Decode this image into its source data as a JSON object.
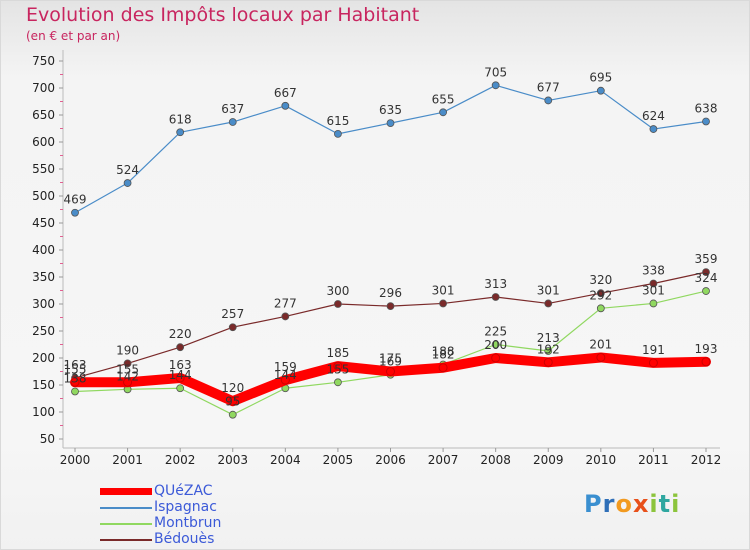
{
  "chart_data": {
    "type": "line",
    "title": "Evolution des Impôts locaux par Habitant",
    "subtitle": "(en € et par an)",
    "x": [
      "2000",
      "2001",
      "2002",
      "2003",
      "2004",
      "2005",
      "2006",
      "2007",
      "2008",
      "2009",
      "2010",
      "2011",
      "2012"
    ],
    "ylim": [
      50,
      750
    ],
    "yticks": [
      50,
      100,
      150,
      200,
      250,
      300,
      350,
      400,
      450,
      500,
      550,
      600,
      650,
      700,
      750
    ],
    "grid": false,
    "legend_position": "bottom-left",
    "series": [
      {
        "name": "QUéZAC",
        "color": "#ff0000",
        "values": [
          155,
          155,
          163,
          120,
          159,
          185,
          175,
          182,
          200,
          192,
          201,
          191,
          193
        ]
      },
      {
        "name": "Ispagnac",
        "color": "#4a8cc8",
        "values": [
          469,
          524,
          618,
          637,
          667,
          615,
          635,
          655,
          705,
          677,
          695,
          624,
          638
        ]
      },
      {
        "name": "Montbrun",
        "color": "#90d860",
        "values": [
          138,
          142,
          144,
          95,
          144,
          155,
          169,
          188,
          225,
          213,
          292,
          301,
          324
        ]
      },
      {
        "name": "Bédouès",
        "color": "#7a2a2a",
        "values": [
          163,
          190,
          220,
          257,
          277,
          300,
          296,
          301,
          313,
          301,
          320,
          338,
          359
        ]
      }
    ],
    "data_labels": [
      {
        "x": "2000",
        "text": "163"
      },
      {
        "x": "2000",
        "text": "155"
      },
      {
        "x": "2000",
        "text": "138"
      },
      {
        "x": "2000",
        "text": "469"
      },
      {
        "x": "2001",
        "text": "190"
      },
      {
        "x": "2001",
        "text": "155"
      },
      {
        "x": "2001",
        "text": "142"
      },
      {
        "x": "2001",
        "text": "524"
      },
      {
        "x": "2002",
        "text": "220"
      },
      {
        "x": "2002",
        "text": "163"
      },
      {
        "x": "2002",
        "text": "144"
      },
      {
        "x": "2002",
        "text": "618"
      },
      {
        "x": "2003",
        "text": "257"
      },
      {
        "x": "2003",
        "text": "120"
      },
      {
        "x": "2003",
        "text": "95"
      },
      {
        "x": "2003",
        "text": "637"
      },
      {
        "x": "2004",
        "text": "277"
      },
      {
        "x": "2004",
        "text": "159"
      },
      {
        "x": "2004",
        "text": "144"
      },
      {
        "x": "2004",
        "text": "667"
      },
      {
        "x": "2005",
        "text": "300"
      },
      {
        "x": "2005",
        "text": "185"
      },
      {
        "x": "2005",
        "text": "155"
      },
      {
        "x": "2005",
        "text": "615"
      },
      {
        "x": "2006",
        "text": "296"
      },
      {
        "x": "2006",
        "text": "175"
      },
      {
        "x": "2006",
        "text": "169"
      },
      {
        "x": "2006",
        "text": "635"
      },
      {
        "x": "2007",
        "text": "301"
      },
      {
        "x": "2007",
        "text": "188"
      },
      {
        "x": "2007",
        "text": "182"
      },
      {
        "x": "2007",
        "text": "655"
      },
      {
        "x": "2008",
        "text": "313"
      },
      {
        "x": "2008",
        "text": "225"
      },
      {
        "x": "2008",
        "text": "200"
      },
      {
        "x": "2008",
        "text": "705"
      },
      {
        "x": "2009",
        "text": "301"
      },
      {
        "x": "2009",
        "text": "213"
      },
      {
        "x": "2009",
        "text": "192"
      },
      {
        "x": "2009",
        "text": "677"
      },
      {
        "x": "2010",
        "text": "320"
      },
      {
        "x": "2010",
        "text": "292"
      },
      {
        "x": "2010",
        "text": "201"
      },
      {
        "x": "2010",
        "text": "695"
      },
      {
        "x": "2011",
        "text": "338"
      },
      {
        "x": "2011",
        "text": "301"
      },
      {
        "x": "2011",
        "text": "191"
      },
      {
        "x": "2011",
        "text": "624"
      },
      {
        "x": "2012",
        "text": "359"
      },
      {
        "x": "2012",
        "text": "324"
      },
      {
        "x": "2012",
        "text": "193"
      },
      {
        "x": "2012",
        "text": "638"
      }
    ]
  },
  "logo": {
    "letters": [
      "P",
      "r",
      "o",
      "x",
      "i",
      "t",
      "i"
    ],
    "colors": [
      "#3a8fd0",
      "#2f6fb8",
      "#f29a1f",
      "#e8501a",
      "#8cc43c",
      "#2fa7a0",
      "#8cc43c"
    ]
  }
}
